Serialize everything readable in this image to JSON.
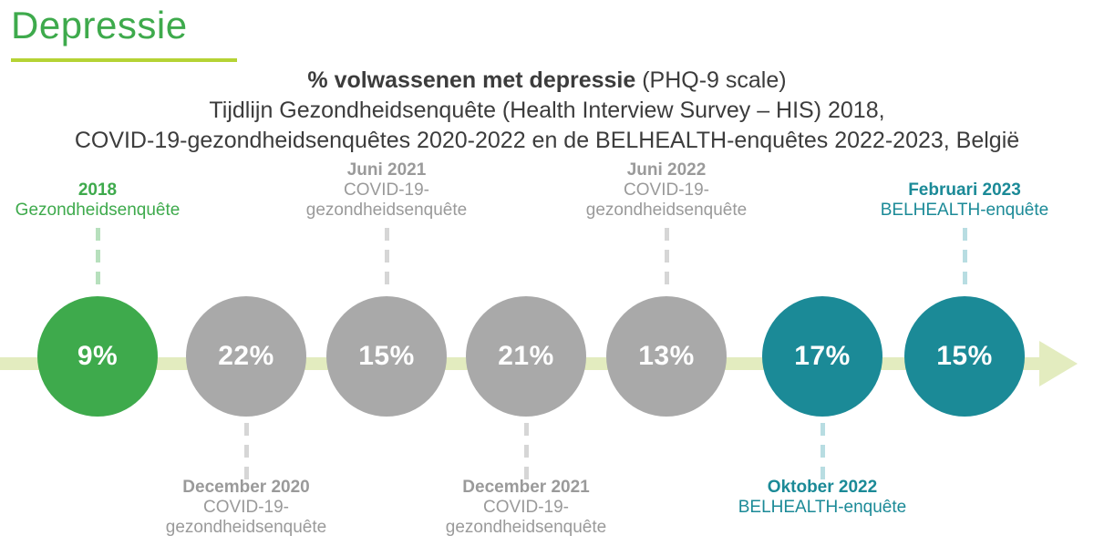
{
  "page": {
    "title": "Depressie",
    "subtitle_bold": "% volwassenen met depressie",
    "subtitle_rest": " (PHQ-9 scale)",
    "subtitle_line2": "Tijdlijn Gezondheidsenquête (Health Interview Survey – HIS) 2018,",
    "subtitle_line3": "COVID-19-gezondheidsenquêtes 2020-2022 en de BELHEALTH-enquêtes 2022-2023, België"
  },
  "colors": {
    "green": "#3eaa4c",
    "gray": "#a9a9a9",
    "teal": "#1b8a97",
    "arrow": "#e3ecbf",
    "gray_text": "#9a9a9a",
    "gray_dash": "#d6d6d6",
    "teal_dash": "#b8dde2",
    "green_dash": "#b7e0bd"
  },
  "timeline": [
    {
      "value": "9%",
      "date": "2018",
      "name": "Gezondheidsenquête",
      "color": "green",
      "label_position": "above"
    },
    {
      "value": "22%",
      "date": "December 2020",
      "name": "COVID-19-\ngezondheidsenquête",
      "color": "gray",
      "label_position": "below"
    },
    {
      "value": "15%",
      "date": "Juni 2021",
      "name": "COVID-19-\ngezondheidsenquête",
      "color": "gray",
      "label_position": "above"
    },
    {
      "value": "21%",
      "date": "December 2021",
      "name": "COVID-19-\ngezondheidsenquête",
      "color": "gray",
      "label_position": "below"
    },
    {
      "value": "13%",
      "date": "Juni 2022",
      "name": "COVID-19-\ngezondheidsenquête",
      "color": "gray",
      "label_position": "above"
    },
    {
      "value": "17%",
      "date": "Oktober 2022",
      "name": "BELHEALTH-enquête",
      "color": "teal",
      "label_position": "below"
    },
    {
      "value": "15%",
      "date": "Februari 2023",
      "name": "BELHEALTH-enquête",
      "color": "teal",
      "label_position": "above"
    }
  ]
}
